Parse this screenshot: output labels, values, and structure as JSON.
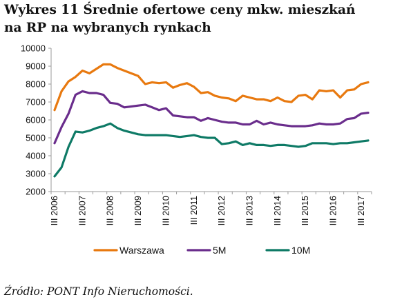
{
  "title": "Wykres 11 Średnie ofertowe ceny mkw. mieszkań na RP na wybranych rynkach",
  "source": "Źródło: PONT Info Nieruchomości.",
  "chart_data": {
    "type": "line",
    "x": [
      "III 2006",
      "IV 2006",
      "I 2007",
      "II 2007",
      "III 2007",
      "IV 2007",
      "I 2008",
      "II 2008",
      "III 2008",
      "IV 2008",
      "I 2009",
      "II 2009",
      "III 2009",
      "IV 2009",
      "I 2010",
      "II 2010",
      "III 2010",
      "IV 2010",
      "I 2011",
      "II 2011",
      "III 2011",
      "IV 2011",
      "I 2012",
      "II 2012",
      "III 2012",
      "IV 2012",
      "I 2013",
      "II 2013",
      "III 2013",
      "IV 2013",
      "I 2014",
      "II 2014",
      "III 2014",
      "IV 2014",
      "I 2015",
      "II 2015",
      "III 2015",
      "IV 2015",
      "I 2016",
      "II 2016",
      "III 2016",
      "IV 2016",
      "I 2017",
      "II 2017",
      "III 2017",
      "IV 2017"
    ],
    "x_tick_labels": [
      "III 2006",
      "III 2007",
      "III 2008",
      "III 2009",
      "III 2010",
      "III 2011",
      "III 2012",
      "III 2013",
      "III 2014",
      "III 2015",
      "III 2016",
      "III 2017"
    ],
    "y_tick_labels": [
      "2000",
      "3000",
      "4000",
      "5000",
      "6000",
      "7000",
      "8000",
      "9000",
      "10000"
    ],
    "ylim": [
      2000,
      10000
    ],
    "legend_position": "bottom",
    "grid": false,
    "series": [
      {
        "name": "Warszawa",
        "color": "#E8790F",
        "values": [
          6550,
          7600,
          8150,
          8400,
          8750,
          8600,
          8850,
          9100,
          9100,
          8900,
          8750,
          8600,
          8450,
          8000,
          8100,
          8050,
          8100,
          7800,
          7950,
          8050,
          7850,
          7500,
          7550,
          7350,
          7250,
          7200,
          7050,
          7350,
          7250,
          7150,
          7150,
          7050,
          7250,
          7050,
          7000,
          7350,
          7400,
          7150,
          7650,
          7600,
          7650,
          7250,
          7650,
          7700,
          8000,
          8100
        ]
      },
      {
        "name": "5M",
        "color": "#6A2D8C",
        "values": [
          4700,
          5600,
          6350,
          7400,
          7600,
          7500,
          7500,
          7400,
          6950,
          6900,
          6700,
          6750,
          6800,
          6850,
          6700,
          6550,
          6650,
          6250,
          6200,
          6150,
          6150,
          5950,
          6100,
          6000,
          5900,
          5850,
          5850,
          5750,
          5750,
          5950,
          5750,
          5850,
          5750,
          5700,
          5650,
          5650,
          5650,
          5700,
          5800,
          5750,
          5750,
          5800,
          6050,
          6100,
          6350,
          6400
        ]
      },
      {
        "name": "10M",
        "color": "#0E7A66",
        "values": [
          2850,
          3350,
          4500,
          5350,
          5300,
          5400,
          5550,
          5650,
          5800,
          5550,
          5400,
          5300,
          5200,
          5150,
          5150,
          5150,
          5150,
          5100,
          5050,
          5100,
          5150,
          5050,
          5000,
          5000,
          4650,
          4700,
          4800,
          4600,
          4700,
          4600,
          4600,
          4550,
          4600,
          4600,
          4550,
          4500,
          4550,
          4700,
          4700,
          4700,
          4650,
          4700,
          4700,
          4750,
          4800,
          4850
        ]
      }
    ]
  }
}
